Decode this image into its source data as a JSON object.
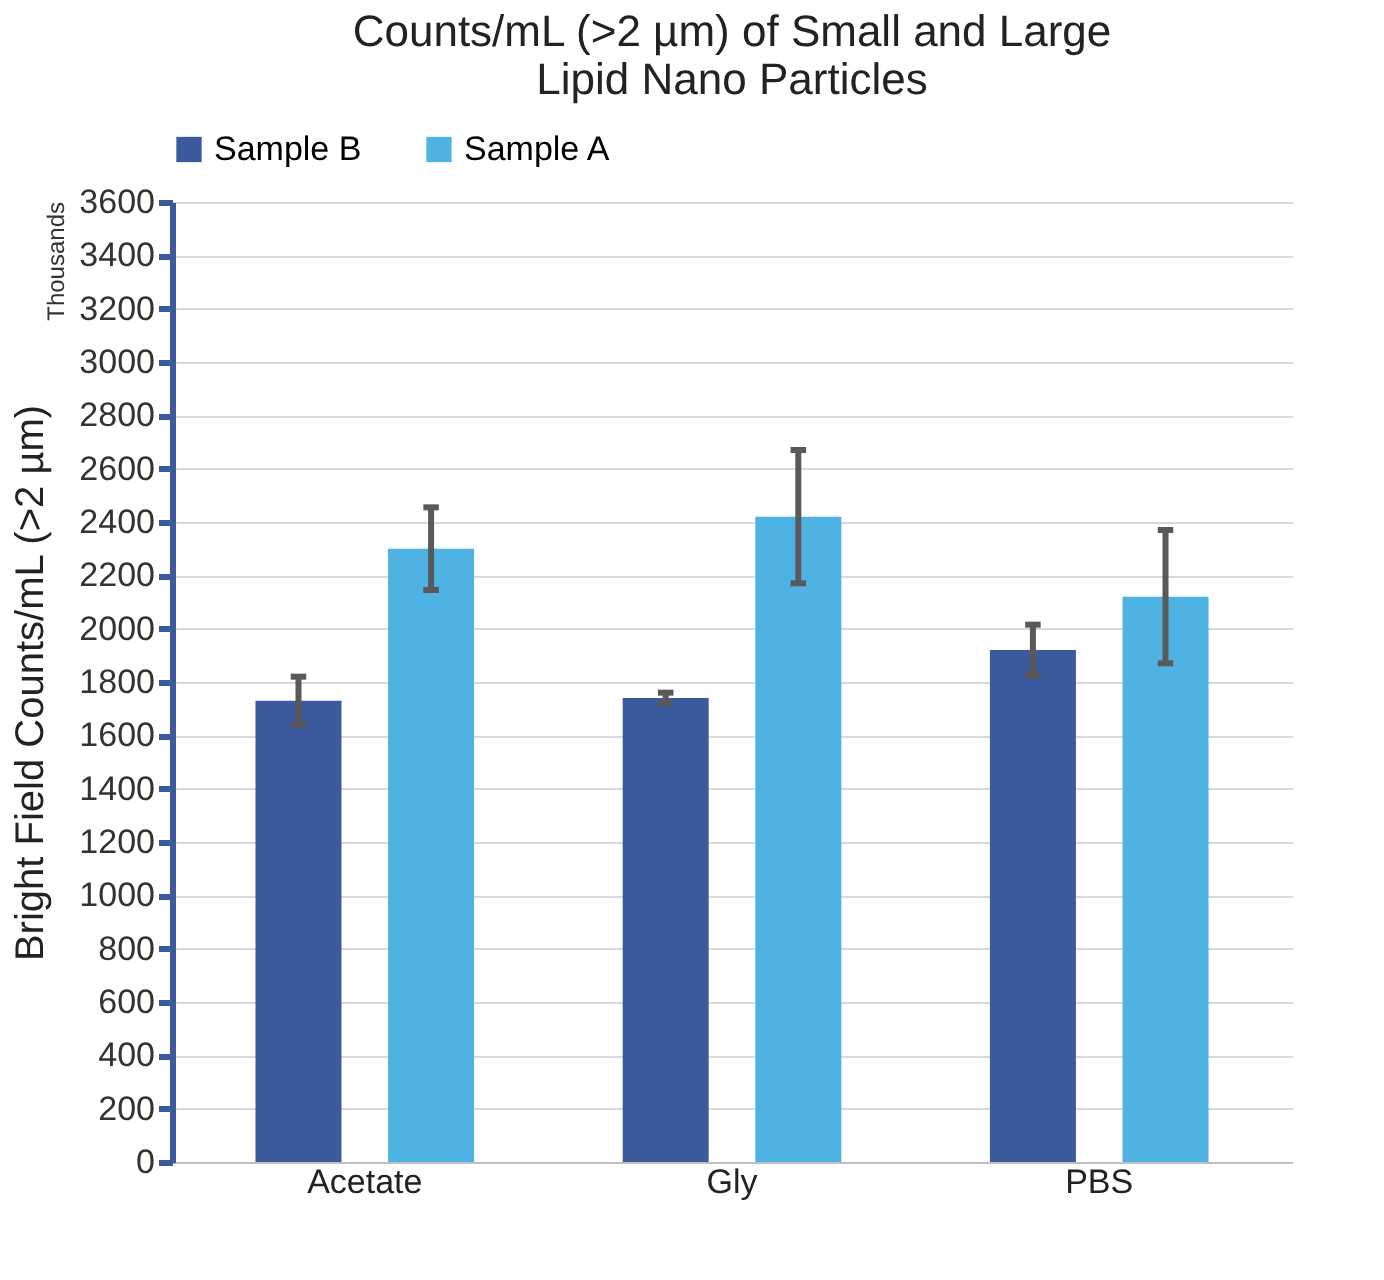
{
  "chart_data": {
    "type": "bar",
    "title": "Counts/mL (>2 µm) of Small and Large Lipid Nano Particles",
    "ylabel": "Bright Field Counts/mL (>2 µm)",
    "annotations": [
      "Thousands"
    ],
    "categories": [
      "Acetate",
      "Gly",
      "PBS"
    ],
    "series": [
      {
        "name": "Sample B",
        "color": "#3c5a9e",
        "values": [
          1730,
          1740,
          1920
        ],
        "errors": [
          90,
          20,
          95
        ]
      },
      {
        "name": "Sample A",
        "color": "#4eb3e3",
        "values": [
          2300,
          2420,
          2120
        ],
        "errors": [
          155,
          250,
          250
        ]
      }
    ],
    "ylim": [
      0,
      3600
    ],
    "yticks": [
      0,
      200,
      400,
      600,
      800,
      1000,
      1200,
      1400,
      1600,
      1800,
      2000,
      2200,
      2400,
      2600,
      2800,
      3000,
      3200,
      3400,
      3600
    ],
    "grid": "y",
    "legend": "top"
  }
}
